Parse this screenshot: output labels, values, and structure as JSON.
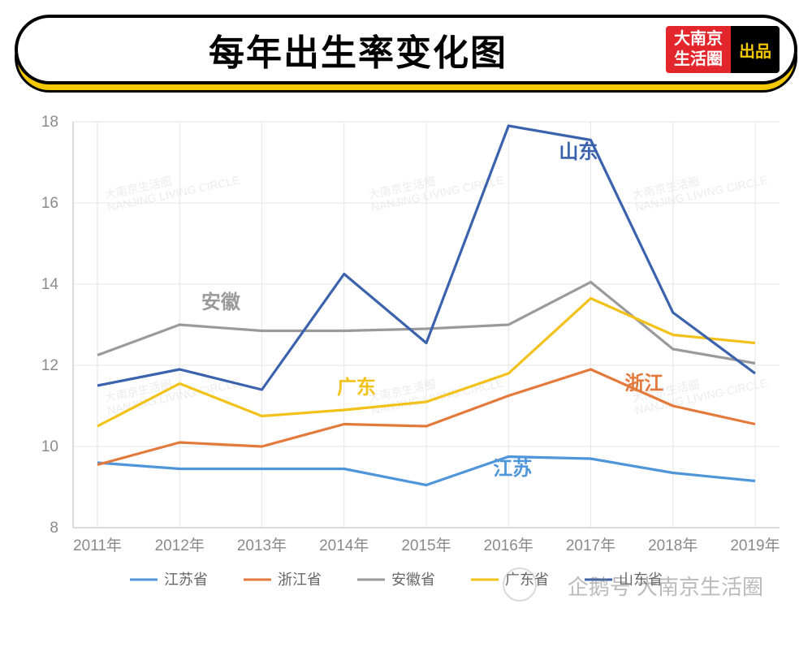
{
  "header": {
    "title": "每年出生率变化图",
    "badge_red_line1": "大南京",
    "badge_red_line2": "生活圈",
    "badge_black": "出品"
  },
  "chart": {
    "type": "line",
    "background_color": "#ffffff",
    "grid_color": "#e6e6e6",
    "axis_color": "#cfcfcf",
    "tick_color": "#8a8a8a",
    "tick_fontsize": 19,
    "line_width": 3.2,
    "x_categories": [
      "2011年",
      "2012年",
      "2013年",
      "2014年",
      "2015年",
      "2016年",
      "2017年",
      "2018年",
      "2019年"
    ],
    "ylim": [
      8,
      18
    ],
    "ytick_step": 2,
    "series": [
      {
        "key": "jiangsu",
        "name": "江苏省",
        "color": "#4e95d9",
        "values": [
          9.6,
          9.45,
          9.45,
          9.45,
          9.05,
          9.75,
          9.7,
          9.35,
          9.15
        ],
        "label_text": "江苏",
        "label_xy": [
          5.05,
          9.3
        ]
      },
      {
        "key": "zhejiang",
        "name": "浙江省",
        "color": "#e37a3b",
        "values": [
          9.55,
          10.1,
          10.0,
          10.55,
          10.5,
          11.25,
          11.9,
          11.0,
          10.55
        ],
        "label_text": "浙江",
        "label_xy": [
          6.65,
          11.4
        ]
      },
      {
        "key": "anhui",
        "name": "安徽省",
        "color": "#9a9a9a",
        "values": [
          12.25,
          13.0,
          12.85,
          12.85,
          12.9,
          13.0,
          14.05,
          12.4,
          12.05
        ],
        "label_text": "安徽",
        "label_xy": [
          1.5,
          13.4
        ]
      },
      {
        "key": "guangdong",
        "name": "广东省",
        "color": "#f2c11a",
        "values": [
          10.5,
          11.55,
          10.75,
          10.9,
          11.1,
          11.8,
          13.65,
          12.75,
          12.55
        ],
        "label_text": "广东",
        "label_xy": [
          3.15,
          11.3
        ]
      },
      {
        "key": "shandong",
        "name": "山东省",
        "color": "#3b62ad",
        "values": [
          11.5,
          11.9,
          11.4,
          14.25,
          12.55,
          17.9,
          17.55,
          13.3,
          11.8
        ],
        "label_text": "山东",
        "label_xy": [
          5.85,
          17.1
        ]
      }
    ],
    "series_label_fontsize": 24,
    "legend": {
      "items": [
        "江苏省",
        "浙江省",
        "安徽省",
        "广东省",
        "山东省"
      ],
      "colors": [
        "#4e95d9",
        "#e37a3b",
        "#9a9a9a",
        "#f2c11a",
        "#3b62ad"
      ],
      "fontsize": 18,
      "position": "bottom-center"
    }
  },
  "watermarks": {
    "stamp_cn": "大南京生活圈",
    "stamp_en": "NANJING LIVING CIRCLE",
    "footer": "企鹅号 大南京生活圈"
  }
}
